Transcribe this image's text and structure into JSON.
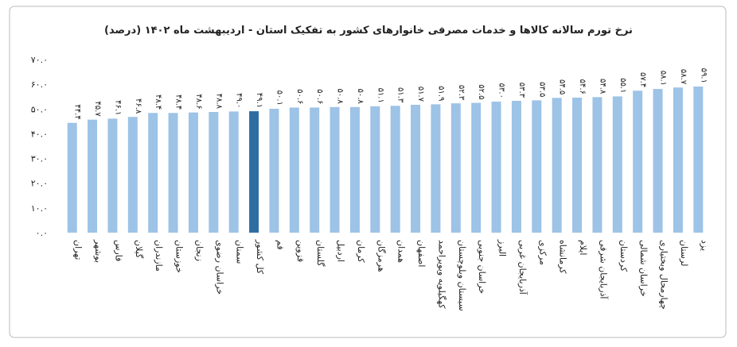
{
  "chart_data": {
    "type": "bar",
    "title": "نرخ تورم سالانه کالاها و خدمات مصرفی خانوارهای کشور به تفکیک استان - اردیبهشت ماه ۱۴۰۲ (درصد)",
    "categories": [
      "تهران",
      "بوشهر",
      "فارس",
      "گیلان",
      "مازندران",
      "خوزستان",
      "زنجان",
      "خراسان رضوی",
      "سمنان",
      "کل کشور",
      "قم",
      "قزوین",
      "گلستان",
      "اردبیل",
      "کرمان",
      "هرمزگان",
      "همدان",
      "اصفهان",
      "کهگیلویه وبویراحمد",
      "سیستان وبلوچستان",
      "خراسان جنوبی",
      "البرز",
      "آذربایجان غربی",
      "مرکزی",
      "کرمانشاه",
      "ایلام",
      "آذربایجان شرقی",
      "کردستان",
      "خراسان شمالی",
      "چهارمحال وبختیاری",
      "لرستان",
      "یزد"
    ],
    "values": [
      44.4,
      45.7,
      46.1,
      46.8,
      48.4,
      48.4,
      48.6,
      48.8,
      49.0,
      49.1,
      50.1,
      50.6,
      50.6,
      50.8,
      50.8,
      51.1,
      51.3,
      51.7,
      51.9,
      52.3,
      52.5,
      53.0,
      53.3,
      53.5,
      54.5,
      54.6,
      54.8,
      55.1,
      57.4,
      58.1,
      58.7,
      59.1
    ],
    "value_labels": [
      "۴۴.۴",
      "۴۵.۷",
      "۴۶.۱",
      "۴۶.۸",
      "۴۸.۴",
      "۴۸.۴",
      "۴۸.۶",
      "۴۸.۸",
      "۴۹.۰",
      "۴۹.۱",
      "۵۰.۱",
      "۵۰.۶",
      "۵۰.۶",
      "۵۰.۸",
      "۵۰.۸",
      "۵۱.۱",
      "۵۱.۳",
      "۵۱.۷",
      "۵۱.۹",
      "۵۲.۳",
      "۵۲.۵",
      "۵۳.۰",
      "۵۳.۳",
      "۵۳.۵",
      "۵۴.۵",
      "۵۴.۶",
      "۵۴.۸",
      "۵۵.۱",
      "۵۷.۴",
      "۵۸.۱",
      "۵۸.۷",
      "۵۹.۱"
    ],
    "colors": [
      "#9dc3e6",
      "#9dc3e6",
      "#9dc3e6",
      "#9dc3e6",
      "#9dc3e6",
      "#9dc3e6",
      "#9dc3e6",
      "#9dc3e6",
      "#9dc3e6",
      "#2e6da4",
      "#9dc3e6",
      "#9dc3e6",
      "#9dc3e6",
      "#9dc3e6",
      "#9dc3e6",
      "#9dc3e6",
      "#9dc3e6",
      "#9dc3e6",
      "#9dc3e6",
      "#9dc3e6",
      "#9dc3e6",
      "#9dc3e6",
      "#9dc3e6",
      "#9dc3e6",
      "#9dc3e6",
      "#9dc3e6",
      "#9dc3e6",
      "#9dc3e6",
      "#9dc3e6",
      "#9dc3e6",
      "#9dc3e6",
      "#9dc3e6"
    ],
    "ylim": [
      0,
      70
    ],
    "yticks": [
      {
        "value": 0,
        "label": "۰.۰"
      },
      {
        "value": 10,
        "label": "۱۰.۰"
      },
      {
        "value": 20,
        "label": "۲۰.۰"
      },
      {
        "value": 30,
        "label": "۳۰.۰"
      },
      {
        "value": 40,
        "label": "۴۰.۰"
      },
      {
        "value": 50,
        "label": "۵۰.۰"
      },
      {
        "value": 60,
        "label": "۶۰.۰"
      },
      {
        "value": 70,
        "label": "۷۰.۰"
      }
    ],
    "grid": false
  }
}
